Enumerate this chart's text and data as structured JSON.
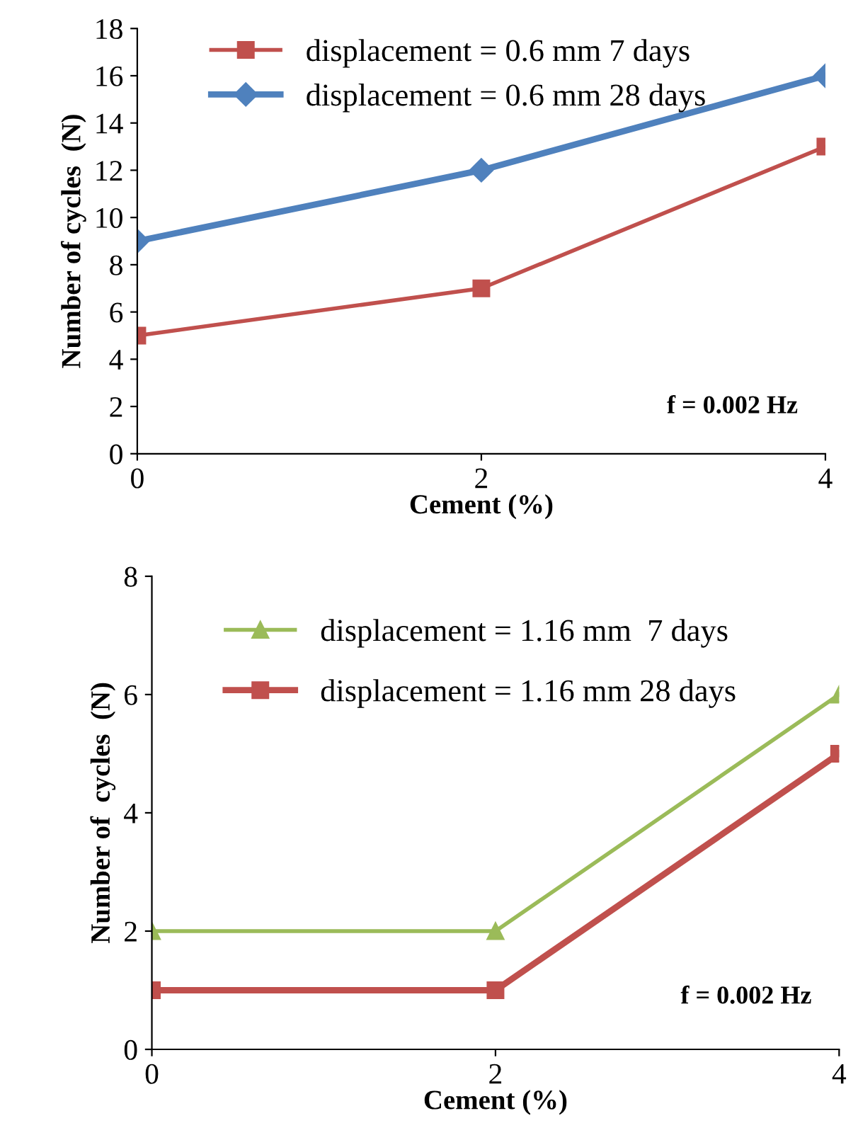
{
  "chart_data": [
    {
      "type": "line",
      "x": [
        0,
        2,
        4
      ],
      "xlim": [
        0,
        4
      ],
      "xticks": [
        0,
        2,
        4
      ],
      "ylim": [
        0,
        18
      ],
      "yticks": [
        0,
        2,
        4,
        6,
        8,
        10,
        12,
        14,
        16,
        18
      ],
      "xlabel": "Cement (%)",
      "ylabel": "Number of cycles  (N)",
      "annotations": [
        "f = 0.002 Hz"
      ],
      "legend": "top left",
      "grid": false,
      "series": [
        {
          "name": "displacement = 0.6 mm 7 days",
          "color": "#c0504d",
          "marker": "square",
          "values": [
            5,
            7,
            13
          ]
        },
        {
          "name": "displacement = 0.6 mm 28 days",
          "color": "#4f81bd",
          "marker": "diamond",
          "values": [
            9,
            12,
            16
          ]
        }
      ]
    },
    {
      "type": "line",
      "x": [
        0,
        2,
        4
      ],
      "xlim": [
        0,
        4
      ],
      "xticks": [
        0,
        2,
        4
      ],
      "ylim": [
        0,
        8
      ],
      "yticks": [
        0,
        2,
        4,
        6,
        8
      ],
      "xlabel": "Cement (%)",
      "ylabel": "Number of  cycles  (N)",
      "annotations": [
        "f = 0.002 Hz"
      ],
      "legend": "top left",
      "grid": false,
      "series": [
        {
          "name": "displacement = 1.16 mm  7 days",
          "color": "#9bbb59",
          "marker": "triangle",
          "values": [
            2,
            2,
            6
          ]
        },
        {
          "name": "displacement = 1.16 mm 28 days",
          "color": "#c0504d",
          "marker": "square",
          "values": [
            1,
            1,
            5
          ]
        }
      ]
    }
  ]
}
